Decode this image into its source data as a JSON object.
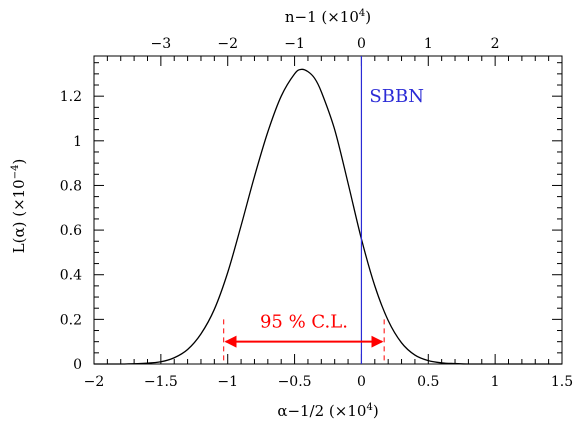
{
  "chart_data": {
    "type": "line",
    "xlabel": "α−1/2 (×10",
    "xlabel_exp": "4",
    "xlabel_end": ")",
    "xlabel_top": "n−1 (×10",
    "xlabel_top_exp": "4",
    "xlabel_top_end": ")",
    "ylabel": "L(α) (×10",
    "ylabel_exp": "−4",
    "ylabel_end": ")",
    "xlim": [
      -2,
      1.5
    ],
    "ylim": [
      0,
      1.38
    ],
    "x_ticks": [
      "−2",
      "−1.5",
      "−1",
      "−0.5",
      "0",
      "0.5",
      "1",
      "1.5"
    ],
    "x_tick_values": [
      -2,
      -1.5,
      -1,
      -0.5,
      0,
      0.5,
      1,
      1.5
    ],
    "y_ticks": [
      "0",
      "0.2",
      "0.4",
      "0.6",
      "0.8",
      "1",
      "1.2"
    ],
    "y_tick_values": [
      0,
      0.2,
      0.4,
      0.6,
      0.8,
      1.0,
      1.2
    ],
    "top_ticks": [
      "−3",
      "−2",
      "−1",
      "0",
      "1",
      "2"
    ],
    "top_tick_values": [
      -3,
      -2,
      -1,
      0,
      1,
      2
    ],
    "top_scale_per_bottom_unit": 2,
    "series": [
      {
        "x": [
          -2.0,
          -1.8,
          -1.6,
          -1.5,
          -1.4,
          -1.3,
          -1.2,
          -1.1,
          -1.0,
          -0.9,
          -0.8,
          -0.7,
          -0.6,
          -0.5,
          -0.45,
          -0.4,
          -0.35,
          -0.3,
          -0.2,
          -0.1,
          0.0,
          0.1,
          0.2,
          0.3,
          0.4,
          0.5,
          0.6,
          0.7,
          0.8,
          1.0,
          1.2,
          1.5
        ],
        "y": [
          0.0,
          0.0,
          0.004,
          0.01,
          0.028,
          0.065,
          0.135,
          0.245,
          0.41,
          0.62,
          0.84,
          1.04,
          1.2,
          1.3,
          1.32,
          1.31,
          1.28,
          1.22,
          1.05,
          0.81,
          0.56,
          0.35,
          0.195,
          0.095,
          0.04,
          0.015,
          0.005,
          0.002,
          0.0,
          0.0,
          0.0,
          0.0
        ]
      }
    ],
    "sbbn_x": 0,
    "sbbn_label": "SBBN",
    "sbbn_color": "#2b2bd6",
    "cl_label": "95 % C.L.",
    "cl_low": -1.03,
    "cl_high": 0.17,
    "cl_marker_y": 0.2,
    "cl_arrow_y": 0.1,
    "cl_color": "#ff0000",
    "grid": false
  }
}
